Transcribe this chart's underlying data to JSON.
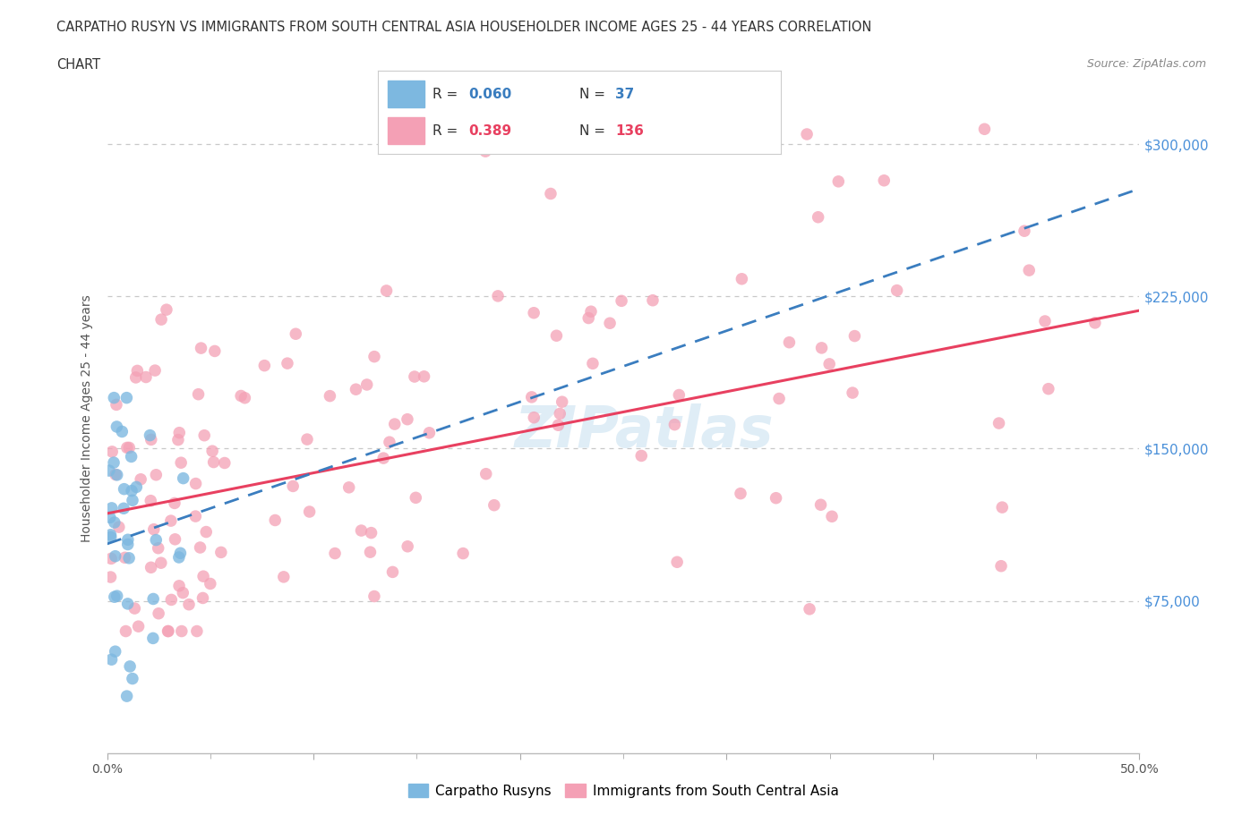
{
  "title_line1": "CARPATHO RUSYN VS IMMIGRANTS FROM SOUTH CENTRAL ASIA HOUSEHOLDER INCOME AGES 25 - 44 YEARS CORRELATION",
  "title_line2": "CHART",
  "source_text": "Source: ZipAtlas.com",
  "ylabel": "Householder Income Ages 25 - 44 years",
  "xlim": [
    0.0,
    0.5
  ],
  "ylim": [
    0,
    330000
  ],
  "xticks": [
    0.0,
    0.1,
    0.2,
    0.3,
    0.4,
    0.5
  ],
  "xticklabels": [
    "0.0%",
    "",
    "",
    "",
    "",
    "50.0%"
  ],
  "yticks": [
    0,
    75000,
    150000,
    225000,
    300000
  ],
  "yticklabels_right": [
    "",
    "$75,000",
    "$150,000",
    "$225,000",
    "$300,000"
  ],
  "grid_color": "#c8c8c8",
  "background_color": "#ffffff",
  "blue_R": 0.06,
  "blue_N": 37,
  "pink_R": 0.389,
  "pink_N": 136,
  "blue_scatter_color": "#7db8e0",
  "pink_scatter_color": "#f4a0b5",
  "blue_line_color": "#3a7dbf",
  "pink_line_color": "#e84060",
  "legend_label_blue": "Carpatho Rusyns",
  "legend_label_pink": "Immigrants from South Central Asia",
  "watermark": "ZIPatlas"
}
